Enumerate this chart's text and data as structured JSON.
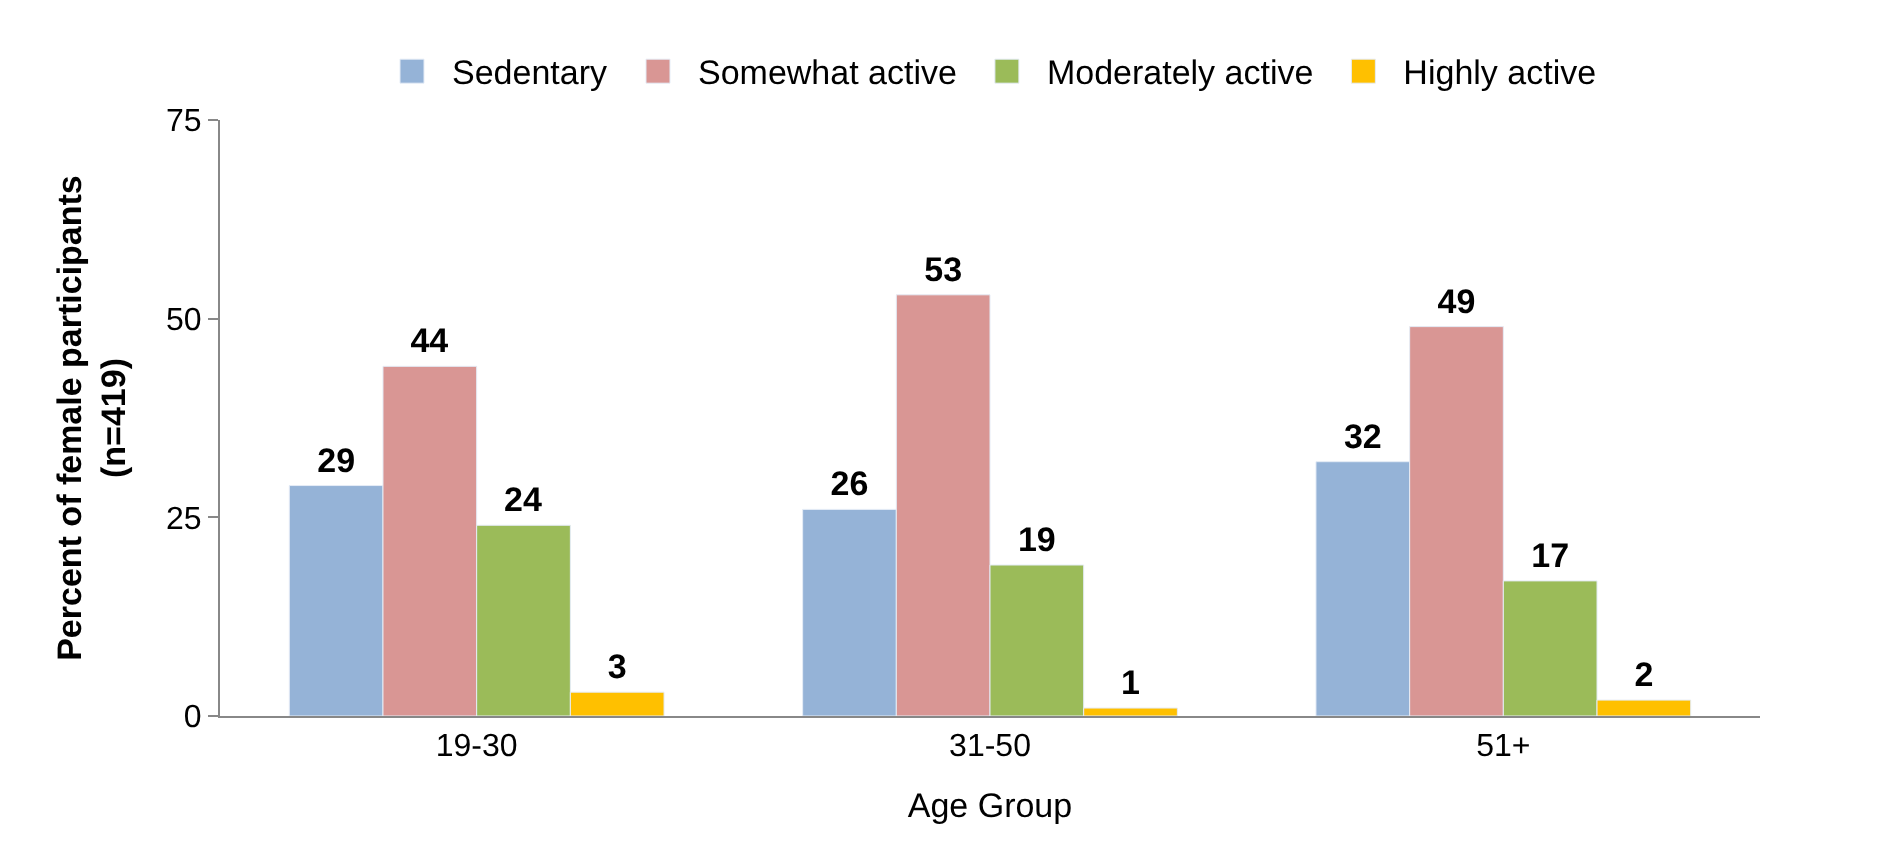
{
  "chart_data": {
    "type": "bar",
    "xlabel": "Age Group",
    "ylabel": "Percent of female participants\n(n=419)",
    "categories": [
      "19-30",
      "31-50",
      "51+"
    ],
    "series": [
      {
        "name": "Sedentary",
        "color": "#95b3d7",
        "values": [
          29,
          26,
          32
        ]
      },
      {
        "name": "Somewhat active",
        "color": "#d99694",
        "values": [
          44,
          53,
          49
        ]
      },
      {
        "name": "Moderately active",
        "color": "#9bbb59",
        "values": [
          24,
          19,
          17
        ]
      },
      {
        "name": "Highly active",
        "color": "#ffc000",
        "values": [
          3,
          1,
          2
        ]
      }
    ],
    "ylim": [
      0,
      75
    ],
    "yticks": [
      0,
      25,
      50,
      75
    ],
    "data_labels": true,
    "legend": "top"
  }
}
